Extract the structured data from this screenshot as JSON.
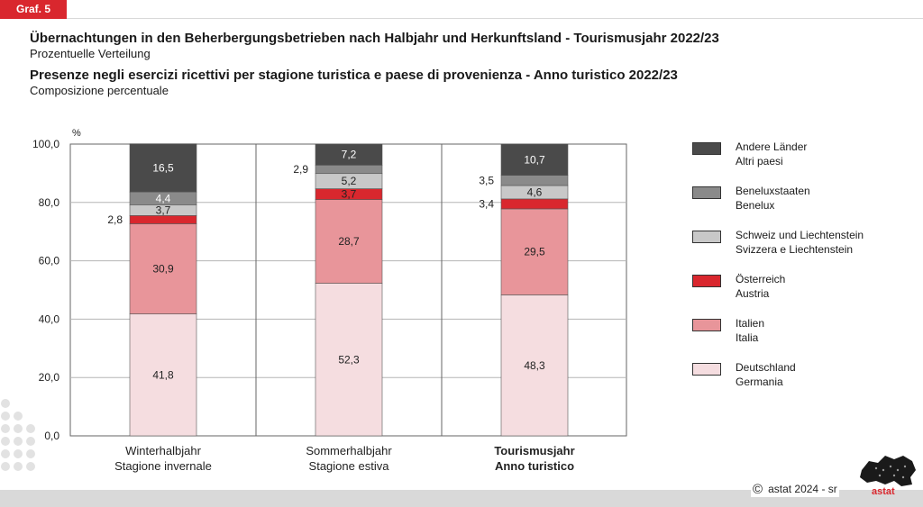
{
  "graf_label": "Graf. 5",
  "title_de": "Übernachtungen in den Beherbergungsbetrieben nach Halbjahr und Herkunftsland - Tourismusjahr 2022/23",
  "subtitle_de": "Prozentuelle Verteilung",
  "title_it": "Presenze negli esercizi ricettivi per stagione turistica e paese di provenienza - Anno turistico 2022/23",
  "subtitle_it": "Composizione percentuale",
  "copyright": "astat 2024 - sr",
  "logo_text": "astat",
  "colors": {
    "Deutschland": "#f5dde0",
    "Italien": "#e8959a",
    "Oesterreich": "#d9272e",
    "Schweiz": "#c8c8c8",
    "Benelux": "#8a8a8a",
    "Andere": "#4a4a4a",
    "brand_red": "#d9272e"
  },
  "chart_data": {
    "type": "bar",
    "stacked": true,
    "y_unit": "%",
    "ylim": [
      0,
      100
    ],
    "yticks": [
      "0,0",
      "20,0",
      "40,0",
      "60,0",
      "80,0",
      "100,0"
    ],
    "ytick_values": [
      0,
      20,
      40,
      60,
      80,
      100
    ],
    "grid": true,
    "categories": [
      {
        "line1": "Winterhalbjahr",
        "line2": "Stagione invernale",
        "bold": false
      },
      {
        "line1": "Sommerhalbjahr",
        "line2": "Stagione estiva",
        "bold": false
      },
      {
        "line1": "Tourismusjahr",
        "line2": "Anno turistico",
        "bold": true
      }
    ],
    "series": [
      {
        "key": "Deutschland",
        "name_de": "Deutschland",
        "name_it": "Germania",
        "values": [
          41.8,
          52.3,
          48.3
        ],
        "labels": [
          "41,8",
          "52,3",
          "48,3"
        ]
      },
      {
        "key": "Italien",
        "name_de": "Italien",
        "name_it": "Italia",
        "values": [
          30.9,
          28.7,
          29.5
        ],
        "labels": [
          "30,9",
          "28,7",
          "29,5"
        ]
      },
      {
        "key": "Oesterreich",
        "name_de": "Österreich",
        "name_it": "Austria",
        "values": [
          2.8,
          3.7,
          3.4
        ],
        "labels": [
          "2,8",
          "3,7",
          "3,4"
        ]
      },
      {
        "key": "Schweiz",
        "name_de": "Schweiz und Liechtenstein",
        "name_it": "Svizzera e Liechtenstein",
        "values": [
          3.7,
          5.2,
          4.6
        ],
        "labels": [
          "3,7",
          "5,2",
          "4,6"
        ]
      },
      {
        "key": "Benelux",
        "name_de": "Beneluxstaaten",
        "name_it": "Benelux",
        "values": [
          4.4,
          2.9,
          3.5
        ],
        "labels": [
          "4,4",
          "2,9",
          "3,5"
        ]
      },
      {
        "key": "Andere",
        "name_de": "Andere Länder",
        "name_it": "Altri paesi",
        "values": [
          16.5,
          7.2,
          10.7
        ],
        "labels": [
          "16,5",
          "7,2",
          "10,7"
        ]
      }
    ]
  }
}
